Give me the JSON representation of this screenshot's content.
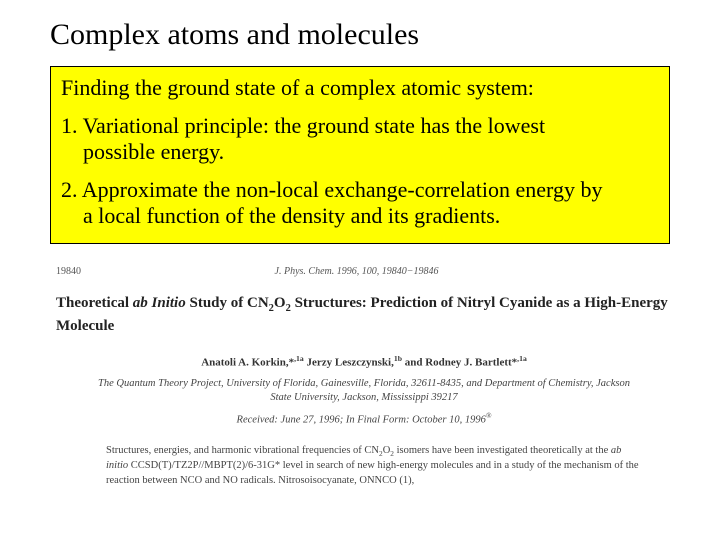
{
  "slide": {
    "title": "Complex atoms and molecules",
    "subtitle": "Finding the ground state of a complex atomic system:",
    "points": [
      {
        "num": "1.",
        "text_line1": "Variational principle: the ground state has the lowest",
        "text_line2": "possible energy."
      },
      {
        "num": "2.",
        "text_line1": "Approximate the non-local exchange-correlation energy by",
        "text_line2": "a local function of the density and its gradients."
      }
    ],
    "highlight_bg": "#ffff00",
    "title_color": "#000000"
  },
  "paper": {
    "page_num": "19840",
    "journal_line": "J. Phys. Chem. 1996, 100, 19840−19846",
    "title_html": "Theoretical <i>ab Initio</i> Study of CN<span class=\"sub\">2</span>O<span class=\"sub\">2</span> Structures: Prediction of Nitryl Cyanide as a High-Energy Molecule",
    "authors_html": "Anatoli A. Korkin,*<span class=\"sup\">,1a</span> Jerzy Leszczynski,<span class=\"sup\">1b</span> and Rodney J. Bartlett*<span class=\"sup\">,1a</span>",
    "affiliation": "The Quantum Theory Project, University of Florida, Gainesville, Florida, 32611-8435, and Department of Chemistry, Jackson State University, Jackson, Mississippi 39217",
    "dates_html": "Received: June 27, 1996; In Final Form: October 10, 1996<span class=\"sup\">®</span>",
    "abstract_html": "Structures, energies, and harmonic vibrational frequencies of CN<span class=\"sub\">2</span>O<span class=\"sub\">2</span> isomers have been investigated theoretically at the <i>ab initio</i> CCSD(T)/TZ2P//MBPT(2)/6-31G* level in search of new high-energy molecules and in a study of the mechanism of the reaction between NCO and NO radicals. Nitrosoisocyanate, ONNCO (1),"
  }
}
